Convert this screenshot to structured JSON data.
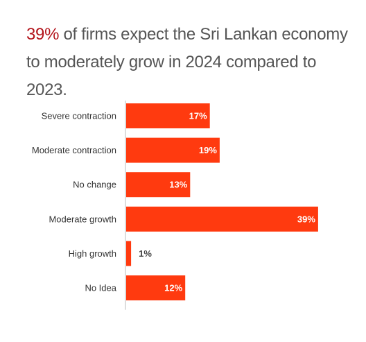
{
  "title": {
    "highlight": "39%",
    "rest": " of firms expect the Sri Lankan economy to moderately grow in 2024 compared to 2023."
  },
  "colors": {
    "bar": "#ff3a0f",
    "highlight": "#b3141b",
    "axis": "#bbbbbb"
  },
  "chart_data": {
    "type": "bar",
    "orientation": "horizontal",
    "categories": [
      "Severe contraction",
      "Moderate contraction",
      "No change",
      "Moderate growth",
      "High growth",
      "No Idea"
    ],
    "values": [
      17,
      19,
      13,
      39,
      1,
      12
    ],
    "value_labels": [
      "17%",
      "19%",
      "13%",
      "39%",
      "1%",
      "12%"
    ],
    "unit": "%",
    "xlim": [
      0,
      40
    ],
    "grid": false,
    "legend": "none"
  }
}
